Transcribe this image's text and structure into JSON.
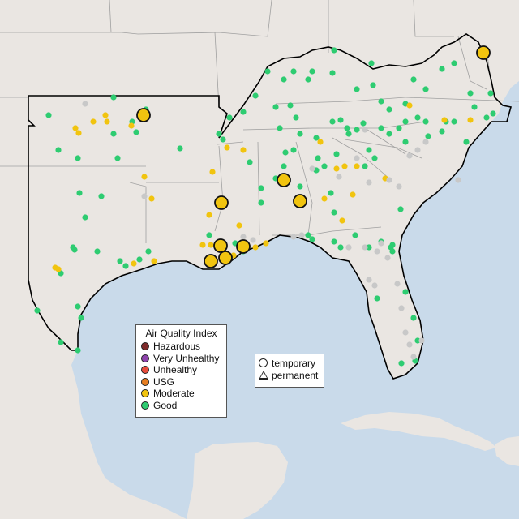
{
  "colors": {
    "water": "#c9daea",
    "land": "#eae6e2",
    "border": "#9a9a9a",
    "region_outline": "#000000",
    "hazardous": "#7e2a2a",
    "very_unhealthy": "#8e44ad",
    "unhealthy": "#e74c3c",
    "usg": "#e67e22",
    "moderate": "#f1c40f",
    "good": "#2ecc71",
    "no_data": "#c8c8c8"
  },
  "aqi_legend": {
    "title": "Air Quality Index",
    "items": [
      {
        "label": "Hazardous",
        "color": "#7e2a2a"
      },
      {
        "label": "Very Unhealthy",
        "color": "#8e44ad"
      },
      {
        "label": "Unhealthy",
        "color": "#e74c3c"
      },
      {
        "label": "USG",
        "color": "#e67e22"
      },
      {
        "label": "Moderate",
        "color": "#f1c40f"
      },
      {
        "label": "Good",
        "color": "#2ecc71"
      }
    ]
  },
  "type_legend": {
    "temporary": "temporary",
    "permanent": "permanent"
  }
}
